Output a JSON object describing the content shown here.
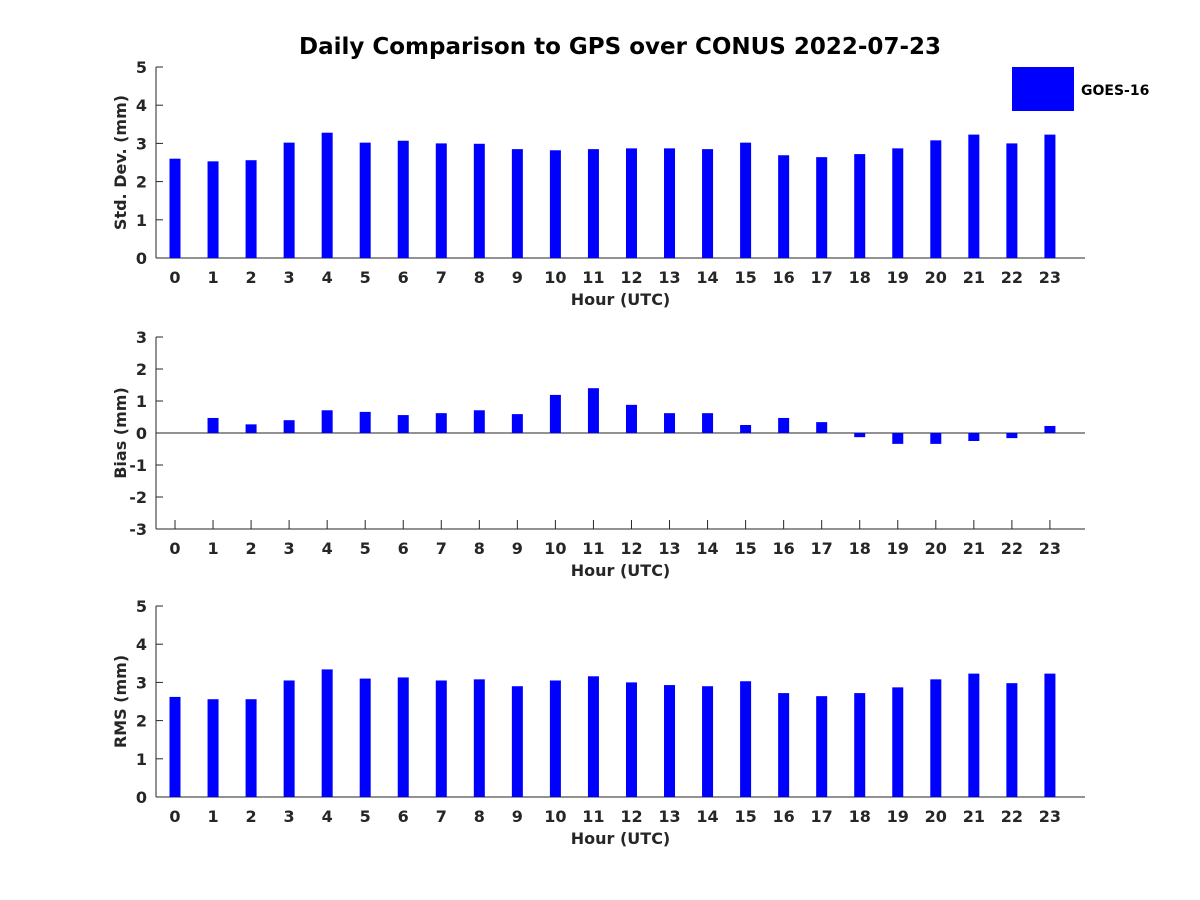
{
  "title": "Daily Comparison to GPS over CONUS 2022-07-23",
  "legend": {
    "label": "GOES-16",
    "color": "#0000ff"
  },
  "chart_data": [
    {
      "type": "bar",
      "ylabel": "Std. Dev. (mm)",
      "xlabel": "Hour (UTC)",
      "ylim": [
        0,
        5
      ],
      "yticks": [
        "0",
        "1",
        "2",
        "3",
        "4",
        "5"
      ],
      "categories": [
        "0",
        "1",
        "2",
        "3",
        "4",
        "5",
        "6",
        "7",
        "8",
        "9",
        "10",
        "11",
        "12",
        "13",
        "14",
        "15",
        "16",
        "17",
        "18",
        "19",
        "20",
        "21",
        "22",
        "23"
      ],
      "series": [
        {
          "name": "GOES-16",
          "values": [
            2.6,
            2.53,
            2.56,
            3.02,
            3.28,
            3.02,
            3.07,
            3.0,
            2.99,
            2.85,
            2.82,
            2.85,
            2.87,
            2.87,
            2.85,
            3.02,
            2.69,
            2.64,
            2.72,
            2.87,
            3.08,
            3.23,
            3.0,
            3.23
          ]
        }
      ]
    },
    {
      "type": "bar",
      "ylabel": "Bias (mm)",
      "xlabel": "Hour (UTC)",
      "ylim": [
        -3,
        3
      ],
      "yticks": [
        "-3",
        "-2",
        "-1",
        "0",
        "1",
        "2",
        "3"
      ],
      "categories": [
        "0",
        "1",
        "2",
        "3",
        "4",
        "5",
        "6",
        "7",
        "8",
        "9",
        "10",
        "11",
        "12",
        "13",
        "14",
        "15",
        "16",
        "17",
        "18",
        "19",
        "20",
        "21",
        "22",
        "23"
      ],
      "series": [
        {
          "name": "GOES-16",
          "values": [
            0.0,
            0.47,
            0.27,
            0.4,
            0.71,
            0.66,
            0.56,
            0.62,
            0.71,
            0.59,
            1.19,
            1.4,
            0.88,
            0.62,
            0.62,
            0.25,
            0.47,
            0.34,
            -0.13,
            -0.34,
            -0.34,
            -0.25,
            -0.16,
            0.22
          ]
        }
      ]
    },
    {
      "type": "bar",
      "ylabel": "RMS (mm)",
      "xlabel": "Hour (UTC)",
      "ylim": [
        0,
        5
      ],
      "yticks": [
        "0",
        "1",
        "2",
        "3",
        "4",
        "5"
      ],
      "categories": [
        "0",
        "1",
        "2",
        "3",
        "4",
        "5",
        "6",
        "7",
        "8",
        "9",
        "10",
        "11",
        "12",
        "13",
        "14",
        "15",
        "16",
        "17",
        "18",
        "19",
        "20",
        "21",
        "22",
        "23"
      ],
      "series": [
        {
          "name": "GOES-16",
          "values": [
            2.62,
            2.56,
            2.56,
            3.05,
            3.34,
            3.1,
            3.13,
            3.05,
            3.08,
            2.9,
            3.05,
            3.16,
            3.0,
            2.93,
            2.9,
            3.03,
            2.72,
            2.64,
            2.72,
            2.87,
            3.08,
            3.23,
            2.98,
            3.23
          ]
        }
      ]
    }
  ]
}
